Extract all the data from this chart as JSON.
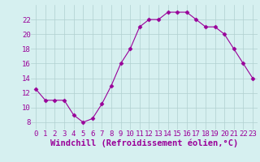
{
  "x": [
    0,
    1,
    2,
    3,
    4,
    5,
    6,
    7,
    8,
    9,
    10,
    11,
    12,
    13,
    14,
    15,
    16,
    17,
    18,
    19,
    20,
    21,
    22,
    23
  ],
  "y": [
    12.5,
    11.0,
    11.0,
    11.0,
    9.0,
    8.0,
    8.5,
    10.5,
    13.0,
    16.0,
    18.0,
    21.0,
    22.0,
    22.0,
    23.0,
    23.0,
    23.0,
    22.0,
    21.0,
    21.0,
    20.0,
    18.0,
    16.0,
    14.0
  ],
  "line_color": "#990099",
  "marker": "D",
  "marker_size": 2.5,
  "bg_color": "#d6f0f0",
  "grid_color": "#b0d0d0",
  "xlabel": "Windchill (Refroidissement éolien,°C)",
  "xlabel_color": "#990099",
  "xlabel_fontsize": 7.5,
  "tick_color": "#990099",
  "tick_fontsize": 6.5,
  "ylim": [
    7,
    24
  ],
  "yticks": [
    8,
    10,
    12,
    14,
    16,
    18,
    20,
    22
  ],
  "xlim": [
    -0.5,
    23.5
  ],
  "xticks": [
    0,
    1,
    2,
    3,
    4,
    5,
    6,
    7,
    8,
    9,
    10,
    11,
    12,
    13,
    14,
    15,
    16,
    17,
    18,
    19,
    20,
    21,
    22,
    23
  ]
}
